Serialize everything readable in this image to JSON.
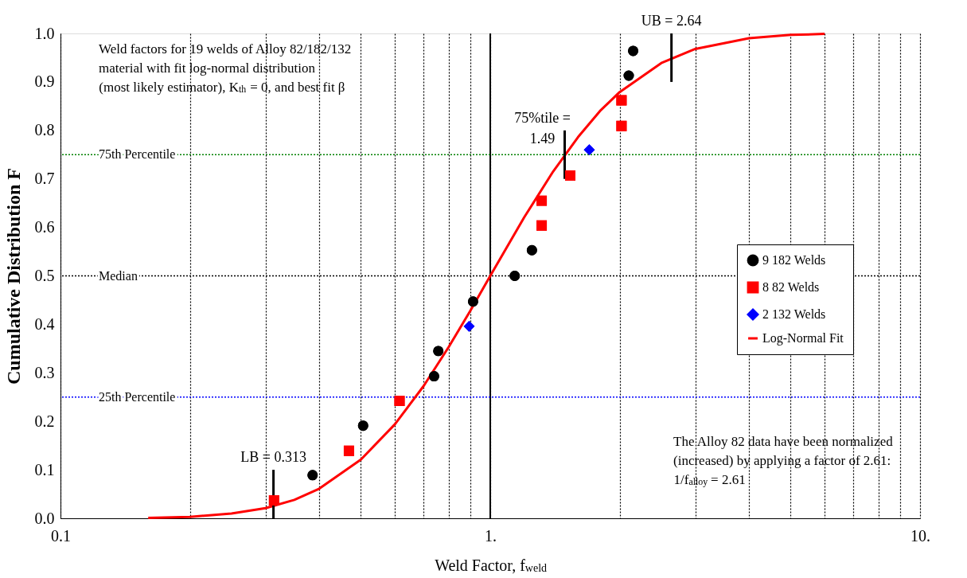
{
  "chart_data": {
    "type": "scatter",
    "xlabel": "Weld Factor, f$_{weld}$",
    "ylabel": "Cumulative Distribution F",
    "log": "x",
    "grid": "x",
    "legend": "right",
    "xlim": [
      0.1,
      10
    ],
    "xticks": [
      {
        "value": 0.1,
        "label": "0.1"
      },
      {
        "value": 0.2,
        "label": null
      },
      {
        "value": 0.3,
        "label": null
      },
      {
        "value": 0.4,
        "label": null
      },
      {
        "value": 0.5,
        "label": null
      },
      {
        "value": 0.6,
        "label": null
      },
      {
        "value": 0.7,
        "label": null
      },
      {
        "value": 0.8,
        "label": null
      },
      {
        "value": 0.9,
        "label": null
      },
      {
        "value": 1,
        "label": "1."
      },
      {
        "value": 2,
        "label": null
      },
      {
        "value": 3,
        "label": null
      },
      {
        "value": 4,
        "label": null
      },
      {
        "value": 5,
        "label": null
      },
      {
        "value": 6,
        "label": null
      },
      {
        "value": 7,
        "label": null
      },
      {
        "value": 8,
        "label": null
      },
      {
        "value": 9,
        "label": null
      },
      {
        "value": 10,
        "label": "10."
      }
    ],
    "ylim": [
      0,
      1
    ],
    "yticks": [
      {
        "value": 0,
        "label": "0.0"
      },
      0.1,
      0.2,
      0.3,
      0.4,
      0.5,
      0.6,
      0.7,
      0.8,
      0.9,
      {
        "value": 1,
        "label": "1.0"
      }
    ],
    "series": [
      {
        "name": "9 182 Welds",
        "color": "#000000",
        "marker": "circle",
        "x": [
          0.386,
          0.506,
          0.74,
          0.757,
          0.912,
          1.14,
          1.25,
          2.1,
          2.15
        ],
        "values": [
          0.089,
          0.191,
          0.293,
          0.345,
          0.447,
          0.5,
          0.553,
          0.913,
          0.964
        ]
      },
      {
        "name": "8 82 Welds",
        "color": "#ff0000",
        "marker": "square",
        "x": [
          0.314,
          0.469,
          0.615,
          1.317,
          1.317,
          1.535,
          2.02,
          2.02
        ],
        "values": [
          0.037,
          0.139,
          0.242,
          0.604,
          0.655,
          0.707,
          0.809,
          0.862
        ]
      },
      {
        "name": "2 132 Welds",
        "color": "#0000ff",
        "marker": "diamond",
        "x": [
          0.893,
          1.7
        ],
        "values": [
          0.396,
          0.76
        ]
      },
      {
        "name": "Log-Normal Fit",
        "type": "line",
        "color": "#ff0000",
        "marker": "none",
        "line_style": "solid",
        "x": [
          0.16,
          0.2,
          0.25,
          0.3,
          0.35,
          0.4,
          0.5,
          0.6,
          0.7,
          0.8,
          0.9,
          1.0,
          1.2,
          1.4,
          1.6,
          1.8,
          2.0,
          2.5,
          3.0,
          4.0,
          5.0,
          6.0
        ],
        "values": [
          0.001,
          0.003,
          0.01,
          0.021,
          0.038,
          0.061,
          0.121,
          0.194,
          0.273,
          0.353,
          0.429,
          0.5,
          0.621,
          0.715,
          0.786,
          0.84,
          0.879,
          0.939,
          0.968,
          0.99,
          0.997,
          0.999
        ]
      }
    ],
    "ref_lines": [
      {
        "axis": "x",
        "value": 1,
        "color": "#000000",
        "line_style": "solid"
      },
      {
        "axis": "y",
        "value": 0.75,
        "label": "75th Percentile",
        "color": "#008000",
        "line_style": "dotted"
      },
      {
        "axis": "y",
        "value": 0.5,
        "label": "Median",
        "color": "#000000",
        "line_style": "dotted"
      },
      {
        "axis": "y",
        "value": 0.25,
        "label": "25th Percentile",
        "color": "#0000ff",
        "line_style": "dotted"
      }
    ],
    "annotations": [
      "Weld factors for 19 welds of Alloy 82/182/132\nmaterial with fit log-normal distribution\n(most likely estimator), K$_{th}$ = 0, and best fit β",
      "The Alloy 82 data have been normalized\n(increased) by applying a factor of 2.61:\n1/f$_{alloy}$ = 2.61",
      {
        "text": "LB = 0.313",
        "x": 0.313,
        "y": 0.05
      },
      {
        "text": "75%tile =\n1.49",
        "x": 1.49,
        "y": 0.75
      },
      {
        "text": "UB = 2.64",
        "x": 2.64,
        "y": 0.95
      }
    ]
  }
}
